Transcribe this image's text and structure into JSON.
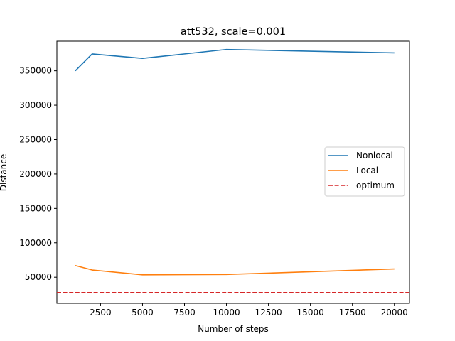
{
  "chart_data": {
    "type": "line",
    "title": "att532, scale=0.001",
    "xlabel": "Number of steps",
    "ylabel": "Distance",
    "xlim": [
      -100,
      20900
    ],
    "ylim": [
      12000,
      393000
    ],
    "xticks": [
      2500,
      5000,
      7500,
      10000,
      12500,
      15000,
      17500,
      20000
    ],
    "xtick_labels": [
      "2500",
      "5000",
      "7500",
      "10000",
      "12500",
      "15000",
      "17500",
      "20000"
    ],
    "yticks": [
      50000,
      100000,
      150000,
      200000,
      250000,
      300000,
      350000
    ],
    "ytick_labels": [
      "50000",
      "100000",
      "150000",
      "200000",
      "250000",
      "300000",
      "350000"
    ],
    "grid": false,
    "legend_position": "center-right",
    "series": [
      {
        "name": "Nonlocal",
        "color": "#1f77b4",
        "style": "solid",
        "x": [
          1000,
          2000,
          5000,
          10000,
          20000
        ],
        "y": [
          350000,
          374500,
          368000,
          381000,
          376000
        ]
      },
      {
        "name": "Local",
        "color": "#ff7f0e",
        "style": "solid",
        "x": [
          1000,
          2000,
          5000,
          10000,
          20000
        ],
        "y": [
          67000,
          60500,
          53500,
          54000,
          62000
        ]
      },
      {
        "name": "optimum",
        "color": "#d62728",
        "style": "dashed",
        "hline": 27686
      }
    ]
  }
}
